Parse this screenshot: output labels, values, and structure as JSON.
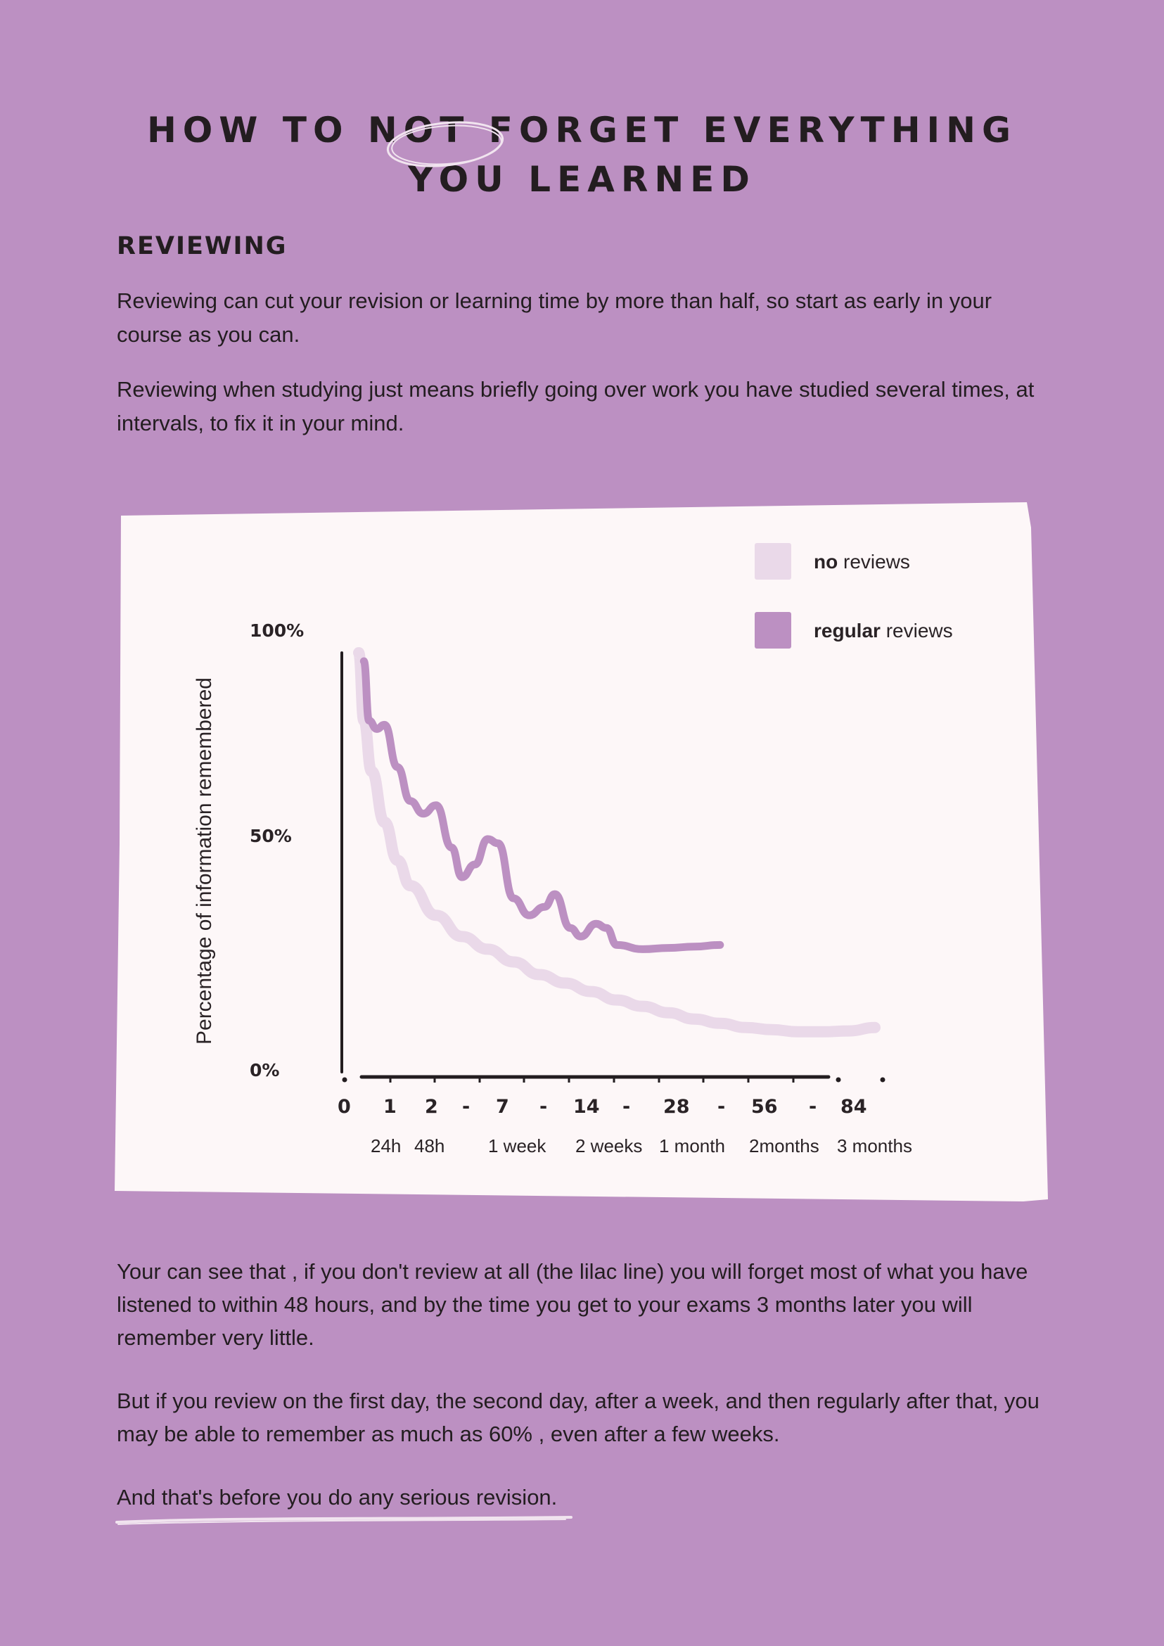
{
  "title": {
    "line1": "HOW TO NOT FORGET EVERYTHING",
    "line2": "YOU LEARNED"
  },
  "section_heading": "REVIEWING",
  "paragraphs": {
    "p1": "Reviewing can cut your revision or learning time by more than half, so start as early in your course as you can.",
    "p2": "Reviewing when studying just means briefly going over work you have studied several times, at intervals, to fix it in your mind.",
    "p3": "Your can see that , if you don't review at all (the lilac line) you will forget most of what you have listened to within 48 hours, and by the time you get to your exams 3 months later you will remember very little.",
    "p4": "But if you review on the first day, the second day, after a week, and then regularly after that, you may be able to remember as much as 60% , even after a few weeks.",
    "p5": "And that's before you do any serious revision."
  },
  "colors": {
    "background": "#bc90c2",
    "card": "#fdf7f8",
    "no_reviews_line": "#ead9e9",
    "regular_reviews_line": "#bc90c2",
    "text": "#231d20"
  },
  "chart_data": {
    "type": "line",
    "ylabel": "Percentage of information remembered",
    "xlabel": "",
    "y_ticks": [
      "100%",
      "50%",
      "0%"
    ],
    "ylim": [
      0,
      100
    ],
    "x_ticks": [
      "0",
      "1",
      "2",
      "-",
      "7",
      "-",
      "14",
      "-",
      "28",
      "-",
      "56",
      "-",
      "84"
    ],
    "x_sublabels": [
      "24h",
      "48h",
      "1 week",
      "2 weeks",
      "1 month",
      "2months",
      "3 months"
    ],
    "legend": [
      {
        "bold": "no",
        "rest": " reviews",
        "color": "#ead9e9"
      },
      {
        "bold": "regular",
        "rest": " reviews",
        "color": "#bc90c2"
      }
    ],
    "legend_position": "top-right",
    "series": [
      {
        "name": "no reviews",
        "points": [
          [
            0,
            100
          ],
          [
            0.2,
            84
          ],
          [
            0.5,
            72
          ],
          [
            1,
            60
          ],
          [
            1.5,
            51
          ],
          [
            2,
            45
          ],
          [
            3,
            38
          ],
          [
            4,
            33
          ],
          [
            5,
            30
          ],
          [
            6,
            27
          ],
          [
            7,
            24
          ],
          [
            8,
            22
          ],
          [
            9,
            20
          ],
          [
            10,
            18
          ],
          [
            11,
            16.5
          ],
          [
            12,
            15
          ],
          [
            13,
            13.5
          ],
          [
            14,
            12.5
          ],
          [
            15,
            11.5
          ],
          [
            16,
            11
          ],
          [
            17,
            10.5
          ],
          [
            18,
            10.5
          ],
          [
            19,
            10.7
          ],
          [
            20,
            11.5
          ]
        ]
      },
      {
        "name": "regular reviews",
        "points": [
          [
            0.2,
            98
          ],
          [
            0.4,
            84
          ],
          [
            0.7,
            82
          ],
          [
            1,
            83
          ],
          [
            1.5,
            73
          ],
          [
            2,
            65
          ],
          [
            2.5,
            62
          ],
          [
            3,
            64
          ],
          [
            3.6,
            54
          ],
          [
            4,
            47
          ],
          [
            4.5,
            50
          ],
          [
            5,
            56
          ],
          [
            5.4,
            55
          ],
          [
            6,
            42
          ],
          [
            6.6,
            38
          ],
          [
            7.2,
            40
          ],
          [
            7.6,
            43
          ],
          [
            8.2,
            35
          ],
          [
            8.6,
            33
          ],
          [
            9.2,
            36
          ],
          [
            9.6,
            35
          ],
          [
            10,
            31
          ],
          [
            11,
            30
          ],
          [
            12,
            30.3
          ],
          [
            13,
            30.6
          ],
          [
            14,
            31
          ]
        ]
      }
    ]
  }
}
